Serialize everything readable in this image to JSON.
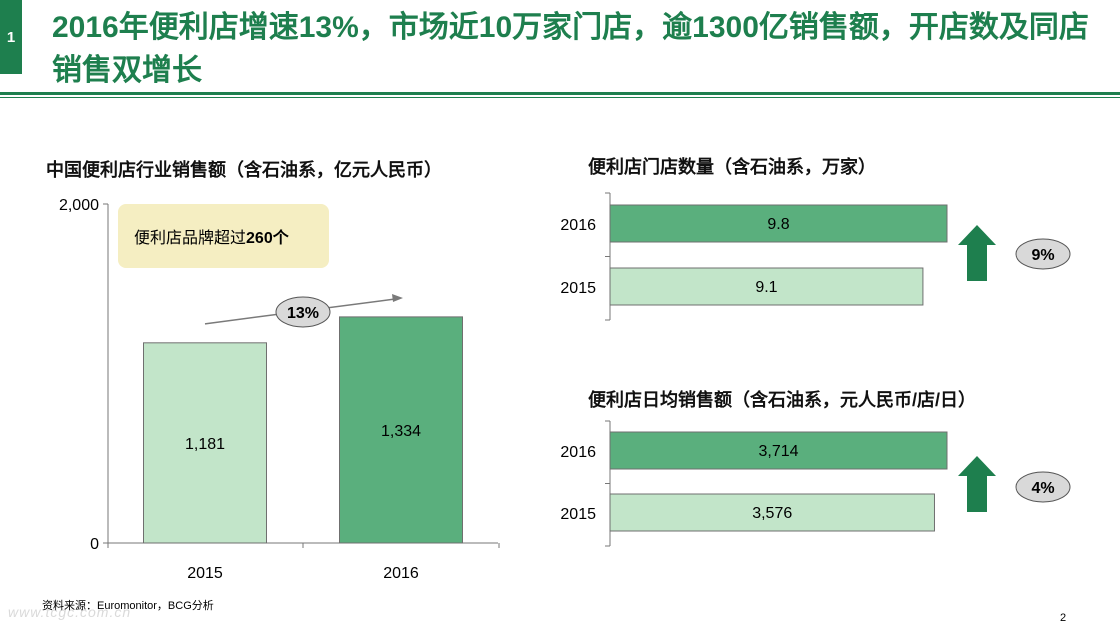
{
  "slide": {
    "number": "1",
    "title": "2016年便利店增速13%，市场近10万家门店，逾1300亿销售额，开店数及同店销售双增长",
    "source": "资料来源：Euromonitor，BCG分析",
    "page_number": "2",
    "watermark": "www.tcgc.com.cn"
  },
  "callout": {
    "text": "便利店品牌超过",
    "bold": "260个"
  },
  "chart_data": [
    {
      "type": "bar",
      "title": "中国便利店行业销售额（含石油系，亿元人民币）",
      "categories": [
        "2015",
        "2016"
      ],
      "values": [
        1181,
        1334
      ],
      "value_labels": [
        "1,181",
        "1,334"
      ],
      "ylim": [
        0,
        2000
      ],
      "yticks": [
        "0",
        "2,000"
      ],
      "growth_label": "13%",
      "colors": [
        "#c2e5c9",
        "#5aaf7d"
      ]
    },
    {
      "type": "bar",
      "orientation": "horizontal",
      "title": "便利店门店数量（含石油系，万家）",
      "categories": [
        "2016",
        "2015"
      ],
      "values": [
        9.8,
        9.1
      ],
      "value_labels": [
        "9.8",
        "9.1"
      ],
      "growth_label": "9%",
      "colors": [
        "#5aaf7d",
        "#c2e5c9"
      ]
    },
    {
      "type": "bar",
      "orientation": "horizontal",
      "title": "便利店日均销售额（含石油系，元人民币/店/日）",
      "categories": [
        "2016",
        "2015"
      ],
      "values": [
        3714,
        3576
      ],
      "value_labels": [
        "3,714",
        "3,576"
      ],
      "growth_label": "4%",
      "colors": [
        "#5aaf7d",
        "#c2e5c9"
      ]
    }
  ]
}
